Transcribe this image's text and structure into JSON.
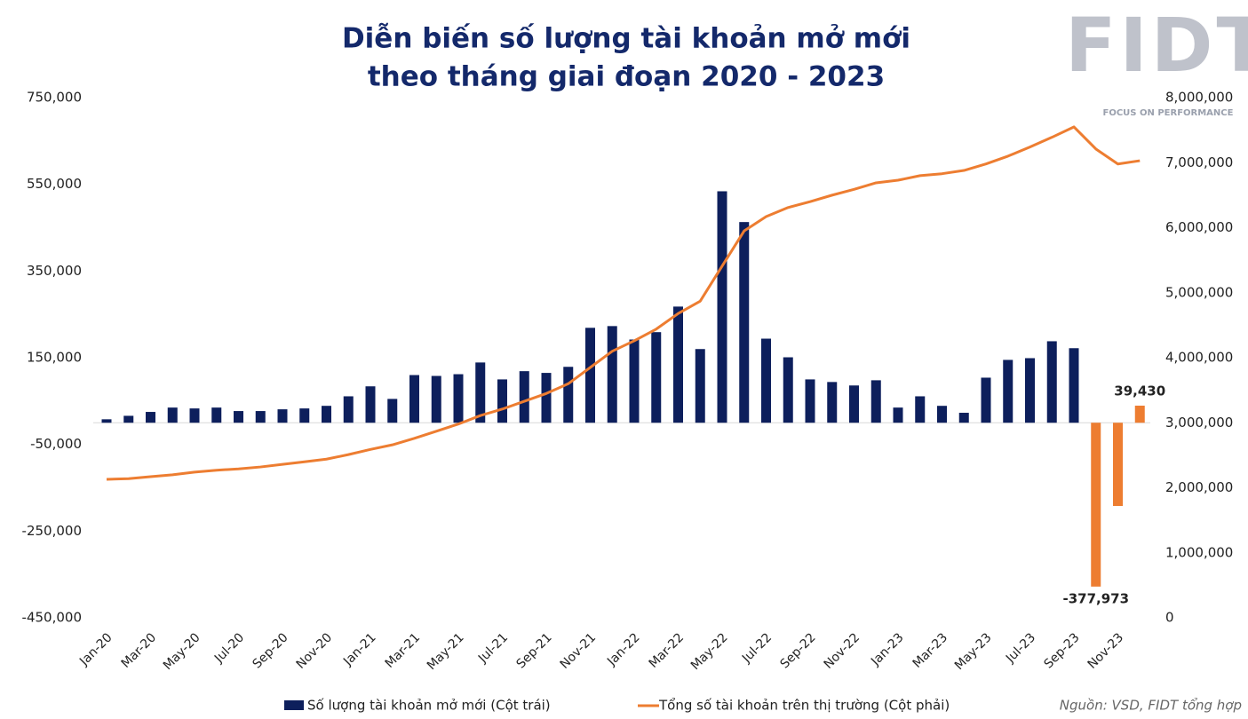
{
  "chart_data": {
    "type": "combo",
    "title": [
      "Diễn biến số lượng tài khoản mở mới",
      "theo tháng giai đoạn 2020 - 2023"
    ],
    "categories": [
      "Jan-20",
      null,
      "Mar-20",
      null,
      "May-20",
      null,
      "Jul-20",
      null,
      "Sep-20",
      null,
      "Nov-20",
      null,
      "Jan-21",
      null,
      "Mar-21",
      null,
      "May-21",
      null,
      "Jul-21",
      null,
      "Sep-21",
      null,
      "Nov-21",
      null,
      "Jan-22",
      null,
      "Mar-22",
      null,
      "May-22",
      null,
      "Jul-22",
      null,
      "Sep-22",
      null,
      "Nov-22",
      null,
      "Jan-23",
      null,
      "Mar-23",
      null,
      "May-23",
      null,
      "Jul-23",
      null,
      "Sep-23",
      null,
      "Nov-23",
      null
    ],
    "series": [
      {
        "name": "Số lượng tài khoản mở mới (Cột trái)",
        "type": "bar",
        "axis": "y",
        "color": "#0d1f5c",
        "colors": [
          "#0d1f5c",
          "#0d1f5c",
          "#0d1f5c",
          "#0d1f5c",
          "#0d1f5c",
          "#0d1f5c",
          "#0d1f5c",
          "#0d1f5c",
          "#0d1f5c",
          "#0d1f5c",
          "#0d1f5c",
          "#0d1f5c",
          "#0d1f5c",
          "#0d1f5c",
          "#0d1f5c",
          "#0d1f5c",
          "#0d1f5c",
          "#0d1f5c",
          "#0d1f5c",
          "#0d1f5c",
          "#0d1f5c",
          "#0d1f5c",
          "#0d1f5c",
          "#0d1f5c",
          "#0d1f5c",
          "#0d1f5c",
          "#0d1f5c",
          "#0d1f5c",
          "#0d1f5c",
          "#0d1f5c",
          "#0d1f5c",
          "#0d1f5c",
          "#0d1f5c",
          "#0d1f5c",
          "#0d1f5c",
          "#0d1f5c",
          "#0d1f5c",
          "#0d1f5c",
          "#0d1f5c",
          "#0d1f5c",
          "#0d1f5c",
          "#0d1f5c",
          "#0d1f5c",
          "#0d1f5c",
          "#0d1f5c",
          "#ed7d31",
          "#ed7d31",
          "#ed7d31"
        ],
        "values": [
          8000,
          16000,
          25000,
          35000,
          33000,
          35000,
          27000,
          27000,
          31000,
          33000,
          39000,
          61000,
          84000,
          55000,
          110000,
          108000,
          112000,
          139000,
          100000,
          119000,
          115000,
          129000,
          219000,
          223000,
          192000,
          209000,
          268000,
          170000,
          534000,
          463000,
          194000,
          151000,
          100000,
          94000,
          86000,
          98000,
          35000,
          61000,
          39000,
          23000,
          104000,
          145000,
          149000,
          188000,
          172000,
          -377973,
          -192000,
          39430
        ],
        "value_labels": [
          null,
          null,
          null,
          null,
          null,
          null,
          null,
          null,
          null,
          null,
          null,
          null,
          null,
          null,
          null,
          null,
          null,
          null,
          null,
          null,
          null,
          null,
          null,
          null,
          null,
          null,
          null,
          null,
          null,
          null,
          null,
          null,
          null,
          null,
          null,
          null,
          null,
          null,
          null,
          null,
          null,
          null,
          null,
          null,
          null,
          "-377,973",
          null,
          "39,430"
        ]
      },
      {
        "name": "Tổng số tài khoản trên thị trường (Cột phải)",
        "type": "line",
        "axis": "y2",
        "color": "#ed7d31",
        "values": [
          2130000,
          2140000,
          2170000,
          2200000,
          2240000,
          2270000,
          2290000,
          2320000,
          2360000,
          2400000,
          2440000,
          2510000,
          2590000,
          2660000,
          2760000,
          2870000,
          2980000,
          3110000,
          3210000,
          3330000,
          3450000,
          3600000,
          3850000,
          4100000,
          4260000,
          4440000,
          4680000,
          4870000,
          5410000,
          5950000,
          6170000,
          6310000,
          6400000,
          6500000,
          6590000,
          6690000,
          6730000,
          6800000,
          6830000,
          6880000,
          6980000,
          7100000,
          7240000,
          7390000,
          7550000,
          7210000,
          6980000,
          7030000
        ]
      }
    ],
    "ylim": [
      -450000,
      750000
    ],
    "yticks": [
      {
        "value": -450000,
        "label": "-450,000"
      },
      {
        "value": -250000,
        "label": "-250,000"
      },
      {
        "value": -50000,
        "label": "-50,000"
      },
      {
        "value": 150000,
        "label": "150,000"
      },
      {
        "value": 350000,
        "label": "350,000"
      },
      {
        "value": 550000,
        "label": "550,000"
      },
      {
        "value": 750000,
        "label": "750,000"
      }
    ],
    "y2lim": [
      0,
      8000000
    ],
    "y2ticks": [
      0,
      {
        "value": 1000000,
        "label": "1,000,000"
      },
      {
        "value": 2000000,
        "label": "2,000,000"
      },
      {
        "value": 3000000,
        "label": "3,000,000"
      },
      {
        "value": 4000000,
        "label": "4,000,000"
      },
      {
        "value": 5000000,
        "label": "5,000,000"
      },
      {
        "value": 6000000,
        "label": "6,000,000"
      },
      {
        "value": 7000000,
        "label": "7,000,000"
      },
      {
        "value": 8000000,
        "label": "8,000,000"
      }
    ],
    "grid": false,
    "legend": "bottom",
    "source": "Nguồn: VSD, FIDT tổng hợp"
  },
  "logo": {
    "name": "FIDT",
    "tagline": "FOCUS ON PERFORMANCE"
  }
}
